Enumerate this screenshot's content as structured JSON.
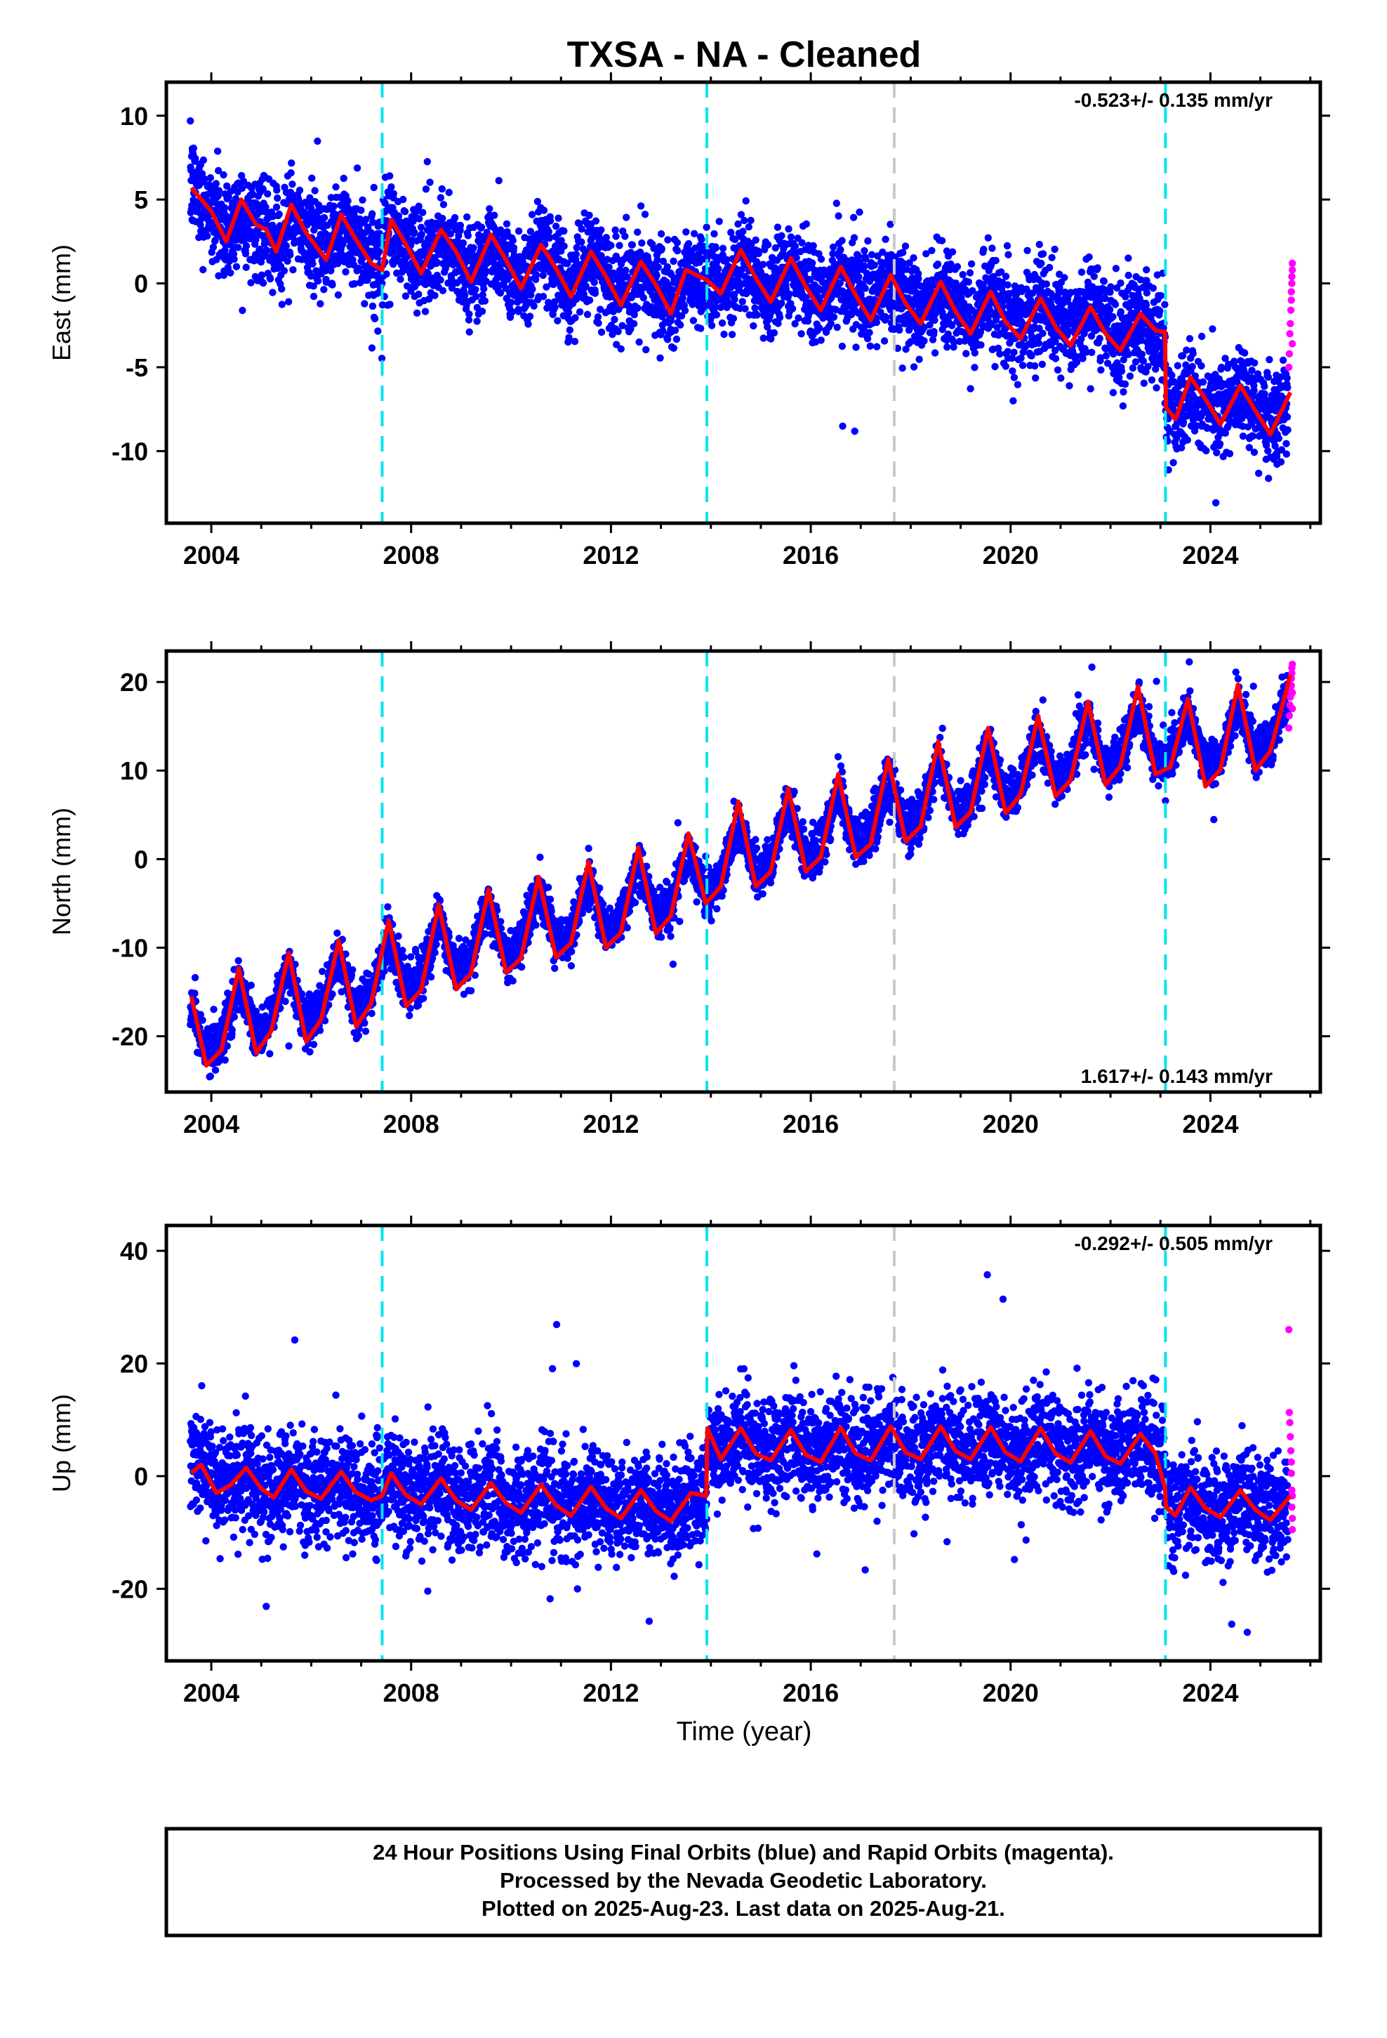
{
  "title": "TXSA  - NA - Cleaned",
  "xlabel": "Time (year)",
  "footer": {
    "line1": "24 Hour Positions Using Final Orbits (blue) and Rapid Orbits (magenta).",
    "line2": "Processed by the Nevada Geodetic Laboratory.",
    "line3": "Plotted on 2025-Aug-23. Last data on 2025-Aug-21."
  },
  "colors": {
    "final": "#0000ff",
    "rapid": "#ff00ff",
    "model": "#ff0000",
    "event": "#00e5ee",
    "equipment": "#c8c8c8"
  },
  "chart_data": [
    {
      "type": "scatter",
      "ylabel": "East (mm)",
      "rate": "-0.523+/- 0.135 mm/yr",
      "xlim": [
        2003.1,
        2026.2
      ],
      "ylim": [
        -14.3,
        12.0
      ],
      "xticks": [
        2004,
        2008,
        2012,
        2016,
        2020,
        2024
      ],
      "yticks": [
        -10,
        -5,
        0,
        5,
        10
      ],
      "events_cyan": [
        2007.42,
        2013.92,
        2023.1
      ],
      "events_gray": [
        2017.67
      ],
      "model_line": {
        "x": [
          2003.6,
          2003.8,
          2004.0,
          2004.3,
          2004.6,
          2004.9,
          2005.1,
          2005.3,
          2005.6,
          2005.9,
          2006.3,
          2006.6,
          2006.9,
          2007.2,
          2007.42,
          2007.6,
          2007.9,
          2008.2,
          2008.6,
          2008.9,
          2009.2,
          2009.6,
          2009.9,
          2010.2,
          2010.6,
          2010.9,
          2011.2,
          2011.6,
          2011.9,
          2012.2,
          2012.6,
          2012.9,
          2013.2,
          2013.5,
          2013.92,
          2014.2,
          2014.6,
          2014.9,
          2015.2,
          2015.6,
          2015.9,
          2016.2,
          2016.6,
          2016.9,
          2017.2,
          2017.6,
          2017.9,
          2018.2,
          2018.6,
          2018.9,
          2019.2,
          2019.6,
          2019.9,
          2020.2,
          2020.6,
          2020.9,
          2021.2,
          2021.6,
          2021.9,
          2022.2,
          2022.6,
          2022.9,
          2023.09,
          2023.11,
          2023.3,
          2023.6,
          2023.9,
          2024.2,
          2024.6,
          2024.9,
          2025.2,
          2025.6
        ],
        "y": [
          5.7,
          5.0,
          4.3,
          2.5,
          5.0,
          3.5,
          3.2,
          1.9,
          4.7,
          3.0,
          1.4,
          4.1,
          2.6,
          1.2,
          0.8,
          3.8,
          2.3,
          0.6,
          3.2,
          1.9,
          0.1,
          2.9,
          1.4,
          -0.3,
          2.3,
          0.9,
          -0.8,
          1.9,
          0.4,
          -1.3,
          1.3,
          -0.1,
          -1.8,
          0.8,
          0.2,
          -0.6,
          2.0,
          0.3,
          -1.1,
          1.5,
          -0.2,
          -1.6,
          1.0,
          -0.7,
          -2.2,
          0.5,
          -1.2,
          -2.4,
          0.1,
          -1.7,
          -3.0,
          -0.5,
          -2.3,
          -3.3,
          -0.9,
          -2.6,
          -3.7,
          -1.4,
          -3.0,
          -4.0,
          -1.8,
          -2.8,
          -2.9,
          -7.4,
          -8.1,
          -5.6,
          -6.9,
          -8.4,
          -6.1,
          -7.6,
          -9.0,
          -6.5
        ]
      },
      "final_anchors": {
        "x": [
          2003.6,
          2004.5,
          2005.5,
          2006.5,
          2007.5,
          2008.5,
          2009.5,
          2010.5,
          2011.5,
          2012.5,
          2013.5,
          2014.5,
          2015.5,
          2016.5,
          2017.5,
          2018.5,
          2019.5,
          2020.5,
          2021.5,
          2022.5,
          2023.05,
          2023.15,
          2024.0,
          2025.0,
          2025.55
        ],
        "y": [
          6.0,
          3.2,
          2.4,
          2.4,
          2.2,
          1.5,
          1.2,
          0.9,
          0.5,
          0.2,
          -0.3,
          0.3,
          0.2,
          -0.2,
          -0.5,
          -0.7,
          -1.0,
          -1.3,
          -1.6,
          -1.9,
          -2.8,
          -7.6,
          -7.2,
          -7.6,
          -8.2
        ],
        "seasonal_amp": 1.6,
        "noise": 1.4,
        "xmax": 2025.55
      },
      "rapid_points": {
        "x": [
          2025.57,
          2025.58,
          2025.59,
          2025.6,
          2025.61,
          2025.62,
          2025.62,
          2025.63,
          2025.63,
          2025.64,
          2025.64,
          2025.64
        ],
        "y": [
          -5.0,
          -4.2,
          -3.0,
          -2.4,
          -1.6,
          -1.0,
          -0.5,
          0.0,
          0.4,
          0.8,
          1.2,
          -3.6
        ]
      }
    },
    {
      "type": "scatter",
      "ylabel": "North (mm)",
      "rate": "1.617+/- 0.143 mm/yr",
      "xlim": [
        2003.1,
        2026.2
      ],
      "ylim": [
        -26.3,
        23.5
      ],
      "xticks": [
        2004,
        2008,
        2012,
        2016,
        2020,
        2024
      ],
      "yticks": [
        -20,
        -10,
        0,
        10,
        20
      ],
      "events_cyan": [
        2007.42,
        2013.92,
        2023.1
      ],
      "events_gray": [
        2017.67
      ],
      "model_line": {
        "x": [
          2003.6,
          2003.9,
          2004.2,
          2004.55,
          2004.9,
          2005.2,
          2005.55,
          2005.9,
          2006.2,
          2006.55,
          2006.9,
          2007.2,
          2007.55,
          2007.9,
          2008.2,
          2008.55,
          2008.9,
          2009.2,
          2009.55,
          2009.9,
          2010.2,
          2010.55,
          2010.9,
          2011.2,
          2011.55,
          2011.9,
          2012.2,
          2012.55,
          2012.9,
          2013.2,
          2013.55,
          2013.9,
          2014.2,
          2014.55,
          2014.9,
          2015.2,
          2015.55,
          2015.9,
          2016.2,
          2016.55,
          2016.9,
          2017.2,
          2017.55,
          2017.9,
          2018.2,
          2018.55,
          2018.9,
          2019.2,
          2019.55,
          2019.9,
          2020.2,
          2020.55,
          2020.9,
          2021.2,
          2021.55,
          2021.9,
          2022.2,
          2022.55,
          2022.9,
          2023.2,
          2023.55,
          2023.9,
          2024.2,
          2024.55,
          2024.9,
          2025.2,
          2025.6
        ],
        "y": [
          -15.5,
          -23.3,
          -21.6,
          -12.3,
          -21.9,
          -19.4,
          -10.6,
          -20.6,
          -18.1,
          -9.2,
          -18.9,
          -16.3,
          -6.9,
          -16.6,
          -14.8,
          -5.1,
          -14.7,
          -12.9,
          -3.4,
          -12.8,
          -11.2,
          -2.0,
          -11.1,
          -9.5,
          -0.3,
          -10.0,
          -8.3,
          1.3,
          -8.4,
          -6.4,
          2.9,
          -5.0,
          -3.1,
          6.5,
          -3.1,
          -1.4,
          8.0,
          -1.4,
          0.2,
          9.6,
          0.2,
          1.7,
          11.3,
          2.0,
          3.7,
          13.3,
          3.6,
          5.3,
          14.8,
          5.2,
          7.3,
          16.2,
          7.1,
          8.9,
          17.8,
          8.4,
          10.5,
          19.5,
          9.6,
          10.4,
          18.1,
          8.2,
          10.1,
          19.7,
          10.0,
          12.2,
          20.8
        ]
      },
      "final_anchors": {
        "x": [
          2003.6,
          2005.0,
          2006.5,
          2008.0,
          2009.5,
          2011.0,
          2012.5,
          2013.9,
          2015.5,
          2017.0,
          2018.5,
          2020.0,
          2021.5,
          2023.0,
          2024.5,
          2025.55
        ],
        "y": [
          -19.0,
          -16.5,
          -14.0,
          -11.2,
          -8.2,
          -5.8,
          -3.5,
          -2.2,
          2.6,
          4.8,
          7.6,
          9.6,
          12.8,
          14.0,
          14.4,
          15.5
        ],
        "seasonal_amp": 4.6,
        "noise": 1.3,
        "xmax": 2025.55
      },
      "rapid_points": {
        "x": [
          2025.57,
          2025.58,
          2025.59,
          2025.6,
          2025.61,
          2025.62,
          2025.62,
          2025.63,
          2025.63,
          2025.64,
          2025.64,
          2025.64
        ],
        "y": [
          14.8,
          16.2,
          17.4,
          18.3,
          19.0,
          19.6,
          20.4,
          21.0,
          21.6,
          22.0,
          18.8,
          17.0
        ]
      }
    },
    {
      "type": "scatter",
      "ylabel": "Up (mm)",
      "rate": "-0.292+/- 0.505 mm/yr",
      "xlim": [
        2003.1,
        2026.2
      ],
      "ylim": [
        -32.8,
        44.5
      ],
      "xticks": [
        2004,
        2008,
        2012,
        2016,
        2020,
        2024
      ],
      "yticks": [
        -20,
        0,
        20,
        40
      ],
      "events_cyan": [
        2007.42,
        2013.92,
        2023.1
      ],
      "events_gray": [
        2017.67
      ],
      "model_line": {
        "x": [
          2003.6,
          2003.8,
          2004.1,
          2004.4,
          2004.7,
          2005.0,
          2005.25,
          2005.6,
          2005.9,
          2006.2,
          2006.6,
          2006.9,
          2007.2,
          2007.42,
          2007.6,
          2007.9,
          2008.2,
          2008.6,
          2008.9,
          2009.2,
          2009.6,
          2009.9,
          2010.2,
          2010.6,
          2010.9,
          2011.2,
          2011.6,
          2011.9,
          2012.2,
          2012.6,
          2012.9,
          2013.2,
          2013.6,
          2013.91,
          2013.93,
          2014.2,
          2014.6,
          2014.9,
          2015.2,
          2015.6,
          2015.9,
          2016.2,
          2016.6,
          2016.9,
          2017.2,
          2017.6,
          2017.9,
          2018.2,
          2018.6,
          2018.9,
          2019.2,
          2019.6,
          2019.9,
          2020.2,
          2020.6,
          2020.9,
          2021.2,
          2021.6,
          2021.9,
          2022.2,
          2022.6,
          2022.9,
          2023.09,
          2023.11,
          2023.3,
          2023.6,
          2023.9,
          2024.2,
          2024.6,
          2024.9,
          2025.2,
          2025.6
        ],
        "y": [
          0.6,
          2.0,
          -3.0,
          -1.5,
          1.5,
          -2.2,
          -3.8,
          1.2,
          -2.7,
          -4.0,
          0.8,
          -2.9,
          -4.3,
          -3.5,
          0.5,
          -3.4,
          -5.0,
          -0.4,
          -4.3,
          -6.0,
          -1.2,
          -4.8,
          -6.5,
          -1.5,
          -5.2,
          -7.0,
          -1.9,
          -5.7,
          -7.5,
          -2.5,
          -6.2,
          -8.0,
          -3.0,
          -3.5,
          8.5,
          3.0,
          8.5,
          4.0,
          2.8,
          8.2,
          3.8,
          2.5,
          8.6,
          4.0,
          2.8,
          8.8,
          4.2,
          3.0,
          8.8,
          4.4,
          3.0,
          8.7,
          4.2,
          2.6,
          8.5,
          4.0,
          2.4,
          8.0,
          3.5,
          2.2,
          7.5,
          4.0,
          -2.0,
          -5.5,
          -7.0,
          -2.0,
          -5.7,
          -7.3,
          -2.5,
          -6.0,
          -7.8,
          -3.5
        ]
      },
      "final_anchors": {
        "x": [
          2003.6,
          2004.5,
          2005.5,
          2006.5,
          2007.4,
          2008.5,
          2009.5,
          2010.5,
          2011.5,
          2012.5,
          2013.9,
          2013.95,
          2015.0,
          2016.0,
          2017.0,
          2018.0,
          2019.0,
          2020.0,
          2021.0,
          2022.0,
          2023.05,
          2023.15,
          2024.0,
          2025.0,
          2025.55
        ],
        "y": [
          4.0,
          -0.5,
          -2.5,
          -2.8,
          -3.0,
          -3.6,
          -3.8,
          -4.0,
          -4.2,
          -4.4,
          -4.6,
          6.0,
          5.6,
          5.4,
          5.6,
          5.7,
          5.9,
          5.8,
          5.7,
          5.4,
          5.2,
          -4.0,
          -4.5,
          -4.6,
          -5.0
        ],
        "seasonal_amp": 3.0,
        "noise": 4.6,
        "xmax": 2025.55
      },
      "rapid_points": {
        "x": [
          2025.57,
          2025.58,
          2025.59,
          2025.6,
          2025.61,
          2025.62,
          2025.62,
          2025.63,
          2025.63,
          2025.64,
          2025.64,
          2025.64
        ],
        "y": [
          26.0,
          11.3,
          9.5,
          7.0,
          4.5,
          2.5,
          0.5,
          -2.5,
          -5.5,
          -7.5,
          -9.5,
          -3.5
        ]
      }
    }
  ]
}
